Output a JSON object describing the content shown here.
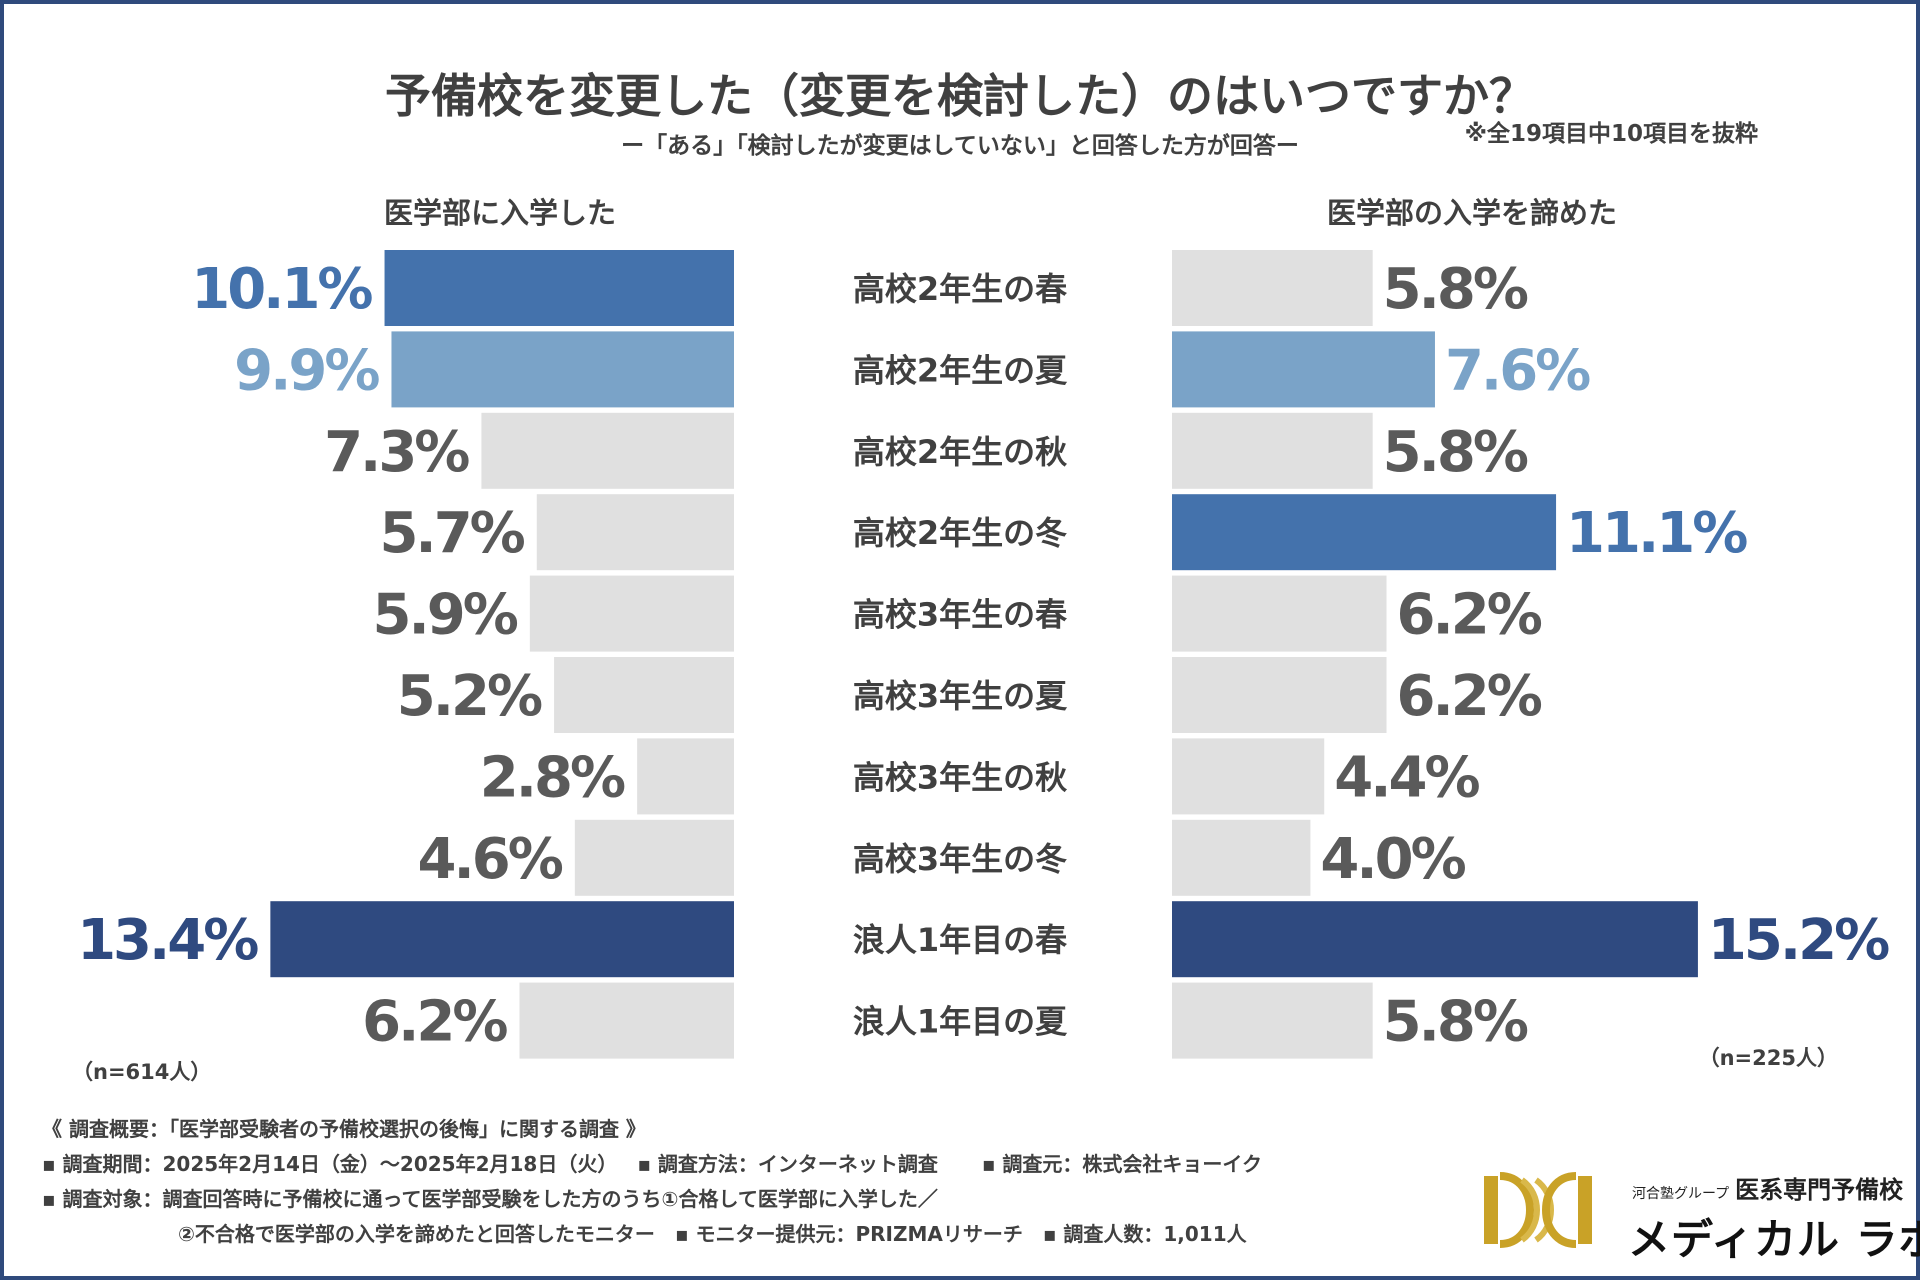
{
  "header": {
    "title": "予備校を変更した（変更を検討した）のはいつですか？",
    "subtitle": "ー「ある」「検討したが変更はしていない」と回答した方が回答ー",
    "note": "※全19項目中10項目を抜粋"
  },
  "chart_data": {
    "type": "bar",
    "title": "予備校を変更した（変更を検討した）のはいつですか？",
    "categories": [
      "高校2年生の春",
      "高校2年生の夏",
      "高校2年生の秋",
      "高校2年生の冬",
      "高校3年生の春",
      "高校3年生の夏",
      "高校3年生の秋",
      "高校3年生の冬",
      "浪人1年目の春",
      "浪人1年目の夏"
    ],
    "series": [
      {
        "name": "医学部に入学した",
        "sample": "（n=614人）",
        "values": [
          10.1,
          9.9,
          7.3,
          5.7,
          5.9,
          5.2,
          2.8,
          4.6,
          13.4,
          6.2
        ],
        "labels": [
          "10.1%",
          "9.9%",
          "7.3%",
          "5.7%",
          "5.9%",
          "5.2%",
          "2.8%",
          "4.6%",
          "13.4%",
          "6.2%"
        ]
      },
      {
        "name": "医学部の入学を諦めた",
        "sample": "（n=225人）",
        "values": [
          5.8,
          7.6,
          5.8,
          11.1,
          6.2,
          6.2,
          4.4,
          4.0,
          15.2,
          5.8
        ],
        "labels": [
          "5.8%",
          "7.6%",
          "5.8%",
          "11.1%",
          "6.2%",
          "6.2%",
          "4.4%",
          "4.0%",
          "15.2%",
          "5.8%"
        ]
      }
    ],
    "rank_colors": {
      "first": "#2f4a80",
      "second": "#4472ac",
      "third": "#7aa3c8",
      "other": "#e0e0e0",
      "other_text": "#5a5a5a"
    }
  },
  "footer": {
    "heading": "《 調査概要：「医学部受験者の予備校選択の後悔」に関する調査 》",
    "period": "▪ 調査期間：2025年2月14日（金）～2025年2月18日（火）",
    "method": "▪ 調査方法：インターネット調査",
    "source": "▪ 調査元：株式会社キョーイク",
    "target1": "▪ 調査対象：調査回答時に予備校に通って医学部受験をした方のうち①合格して医学部に入学した／",
    "target2": "②不合格で医学部の入学を諦めたと回答したモニター",
    "provider": "▪ モニター提供元：PRIZMAリサーチ",
    "count": "▪ 調査人数：1,011人"
  },
  "logo": {
    "group": "河合塾グループ",
    "school": "医系専門予備校",
    "name": "メディカル ラボ"
  }
}
